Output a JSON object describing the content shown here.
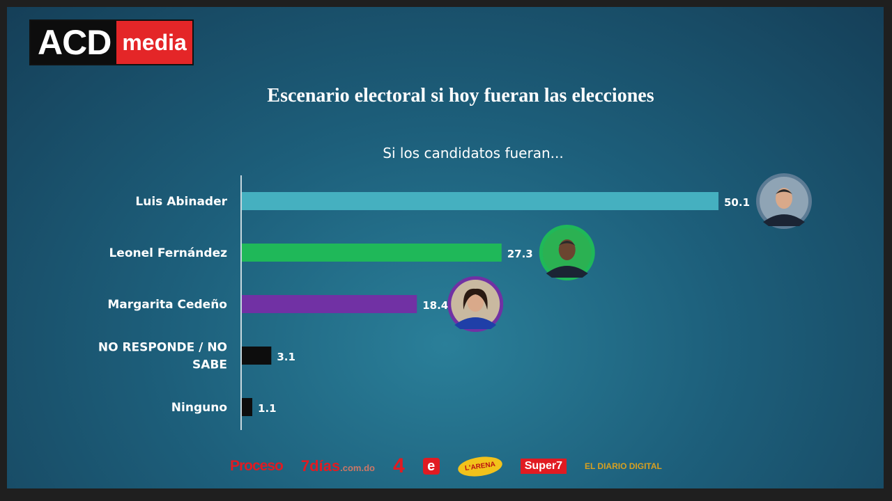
{
  "brand": {
    "part1": "ACD",
    "part2": "media"
  },
  "title": "Escenario electoral si hoy fueran las elecciones",
  "subtitle": "Si los candidatos fueran...",
  "chart_data": {
    "type": "bar",
    "orientation": "horizontal",
    "categories": [
      "Luis Abinader",
      "Leonel Fernández",
      "Margarita Cedeño",
      "NO RESPONDE / NO SABE",
      "Ninguno"
    ],
    "category_lines": [
      [
        "Luis Abinader"
      ],
      [
        "Leonel Fernández"
      ],
      [
        "Margarita Cedeño"
      ],
      [
        "NO RESPONDE / NO",
        "SABE"
      ],
      [
        "Ninguno"
      ]
    ],
    "values": [
      50.1,
      27.3,
      18.4,
      3.1,
      1.1
    ],
    "value_labels": [
      "50.1",
      "27.3",
      "18.4",
      "3.1",
      "1.1"
    ],
    "colors": [
      "#45b0c0",
      "#1fb859",
      "#7131a4",
      "#0d0d0d",
      "#0d0d0d"
    ],
    "portraits": [
      true,
      true,
      true,
      false,
      false
    ],
    "xlim": [
      0,
      50.1
    ],
    "grid": false,
    "legend": "none"
  },
  "sponsors": {
    "proceso": "Proceso",
    "siete_dias": "7días",
    "siete_dias_suffix": ".com.do",
    "canal4": "4",
    "e": "e",
    "arena": "L'ARENA",
    "super7": "Super7",
    "diario": "EL DIARIO DIGITAL"
  }
}
